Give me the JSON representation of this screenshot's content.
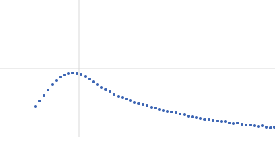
{
  "chart_data": {
    "type": "scatter",
    "color": "#3b64b3",
    "grid": true,
    "xlim": [
      0,
      400
    ],
    "ylim": [
      0,
      200
    ],
    "xticks": [
      115
    ],
    "yticks": [
      100
    ],
    "x": [
      52,
      58,
      64,
      70,
      76,
      82,
      88,
      94,
      100,
      106,
      112,
      118,
      124,
      130,
      136,
      142,
      148,
      154,
      160,
      166,
      172,
      178,
      184,
      190,
      196,
      202,
      208,
      214,
      220,
      226,
      232,
      238,
      244,
      250,
      256,
      262,
      268,
      274,
      280,
      286,
      292,
      298,
      304,
      310,
      316,
      322,
      328,
      334,
      340,
      346,
      352,
      358,
      364,
      370,
      376,
      382,
      388,
      394,
      399
    ],
    "values": [
      45,
      53,
      61,
      69,
      77,
      83,
      88,
      91,
      93,
      94,
      93,
      92,
      89,
      85,
      81,
      77,
      73,
      70,
      67,
      63,
      60,
      58,
      56,
      54,
      51,
      49,
      48,
      46,
      44,
      43,
      41,
      39,
      38,
      37,
      36,
      34,
      33,
      31,
      30,
      29,
      28,
      26,
      26,
      25,
      24,
      23,
      23,
      21,
      20,
      21,
      19,
      18,
      18,
      17,
      16,
      17,
      15,
      14,
      15
    ]
  }
}
